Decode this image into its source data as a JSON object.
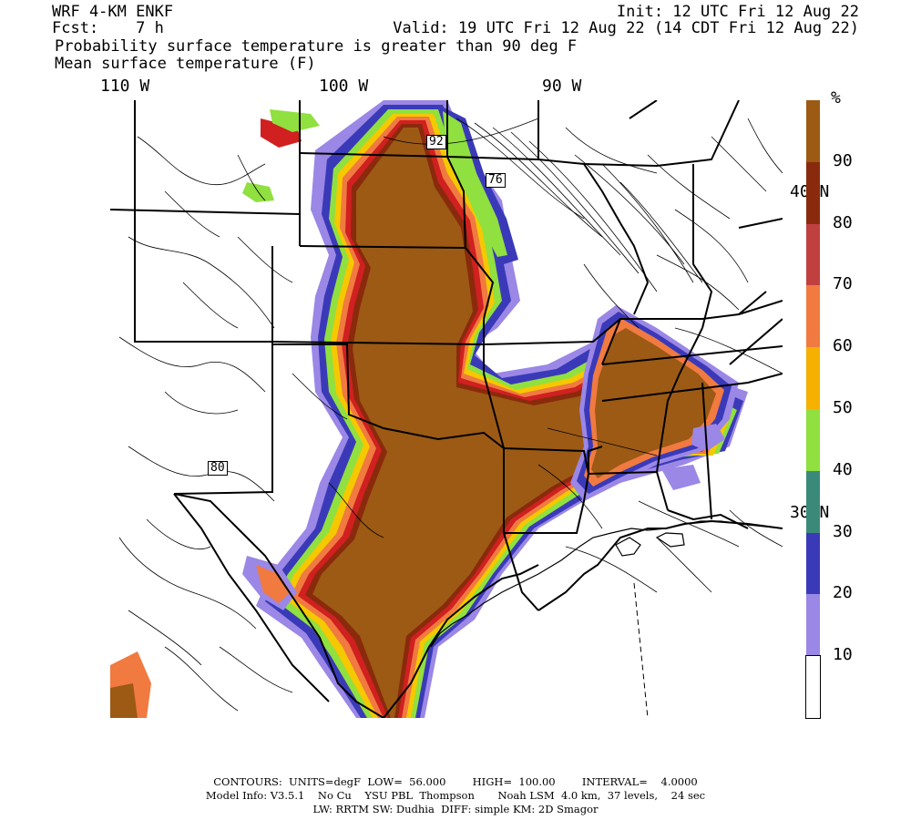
{
  "header": {
    "model": "WRF 4-KM ENKF",
    "fcst": "Fcst:    7 h",
    "init": "Init: 12 UTC Fri 12 Aug 22",
    "valid": "Valid: 19 UTC Fri 12 Aug 22 (14 CDT Fri 12 Aug 22)",
    "line3": "Probability surface temperature is greater than 90 deg F",
    "line4": "Mean surface temperature (F)"
  },
  "lon_labels": [
    "110 W",
    "100 W",
    "90 W"
  ],
  "lat_labels": [
    "40 N",
    "30 N"
  ],
  "contour_labels": [
    "92",
    "76",
    "80"
  ],
  "colorbar": {
    "unit": "%",
    "labels": [
      "90",
      "80",
      "70",
      "60",
      "50",
      "40",
      "30",
      "20",
      "10"
    ],
    "colors": [
      "#9c5a14",
      "#8a2a0c",
      "#c04040",
      "#f07a40",
      "#f5b000",
      "#90e040",
      "#3a8a7a",
      "#3a3ab8",
      "#9b87e6",
      "#ffffff"
    ]
  },
  "field_colors": {
    "brown": "#9c5a14",
    "darkred": "#8a2a0c",
    "red": "#d02020",
    "orange": "#f07a40",
    "yellow": "#f5c800",
    "green": "#90e040",
    "teal": "#3a8a7a",
    "blue": "#3a3ab8",
    "lavender": "#9b87e6"
  },
  "footer": {
    "line1": "CONTOURS:  UNITS=degF  LOW=  56.000        HIGH=  100.00        INTERVAL=    4.0000",
    "line2": "Model Info: V3.5.1    No Cu    YSU PBL  Thompson       Noah LSM  4.0 km,  37 levels,    24 sec",
    "line3": "LW: RRTM SW: Dudhia  DIFF: simple KM: 2D Smagor"
  }
}
